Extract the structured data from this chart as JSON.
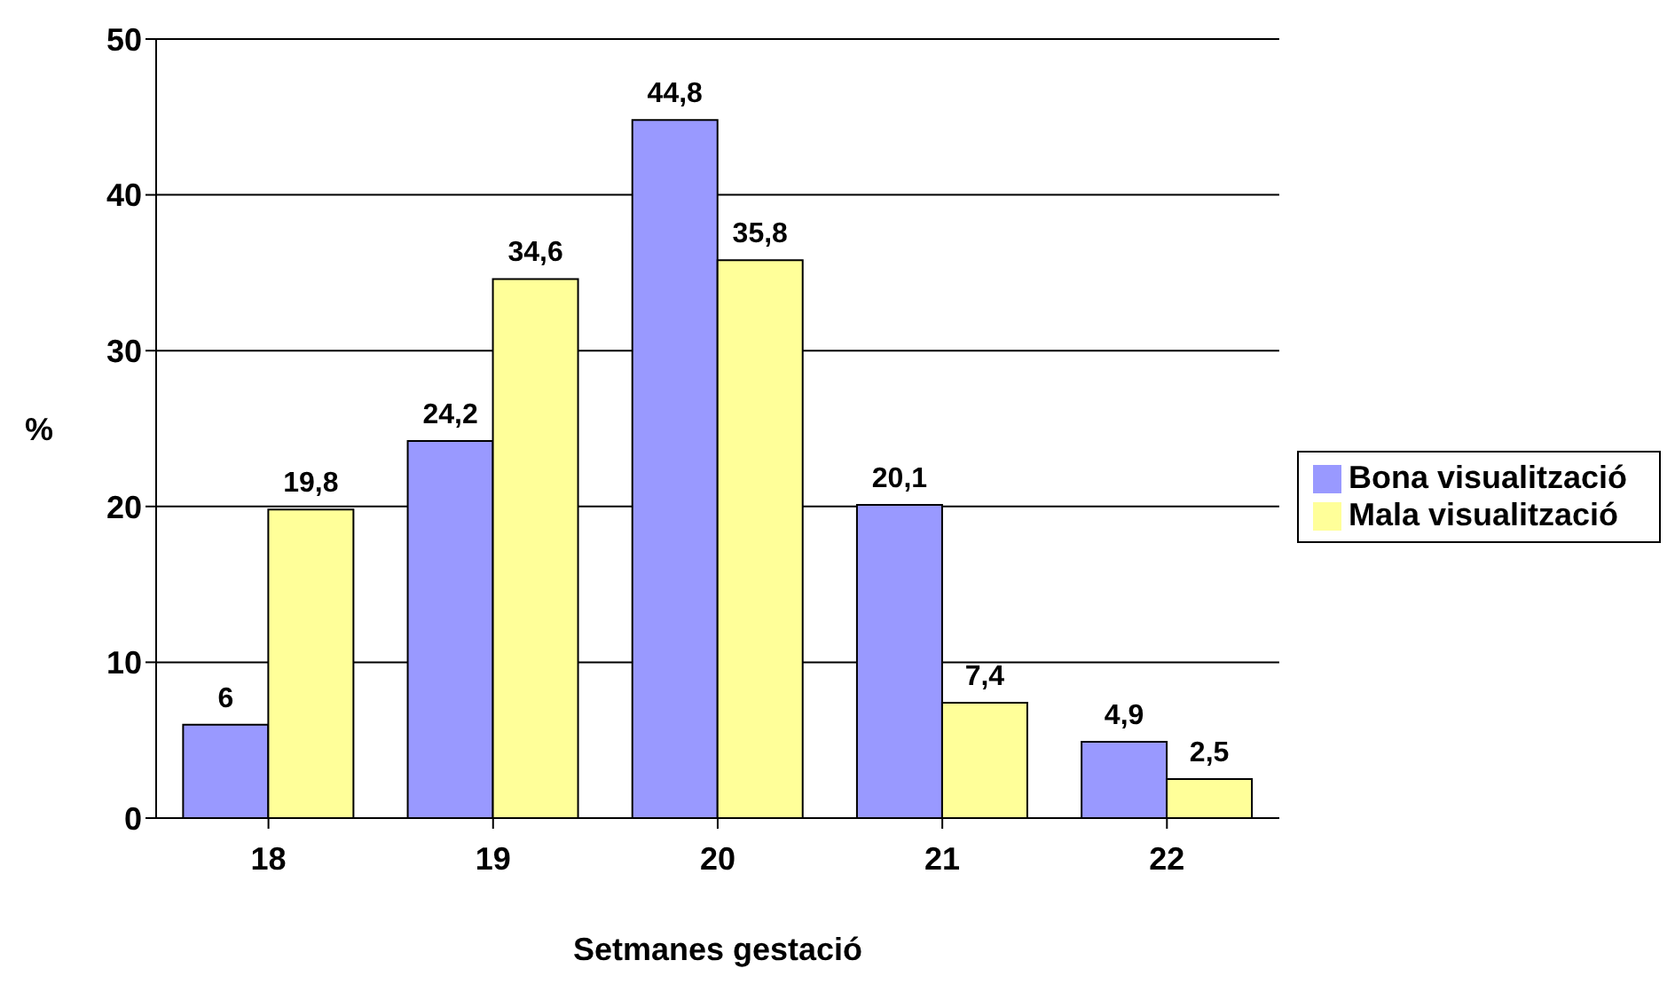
{
  "chart_data": {
    "type": "bar",
    "xlabel": "Setmanes gestació",
    "ylabel": "%",
    "categories": [
      "18",
      "19",
      "20",
      "21",
      "22"
    ],
    "series": [
      {
        "name": "Bona visualització",
        "color": "#9999ff",
        "values": [
          6,
          24.2,
          44.8,
          20.1,
          4.9
        ],
        "value_labels": [
          "6",
          "24,2",
          "44,8",
          "20,1",
          "4,9"
        ]
      },
      {
        "name": "Mala visualització",
        "color": "#ffff99",
        "values": [
          19.8,
          34.6,
          35.8,
          7.4,
          2.5
        ],
        "value_labels": [
          "19,8",
          "34,6",
          "35,8",
          "7,4",
          "2,5"
        ]
      }
    ],
    "ylim": [
      0,
      50
    ],
    "yticks": [
      0,
      10,
      20,
      30,
      40,
      50
    ],
    "grid": "y",
    "legend": "right"
  }
}
